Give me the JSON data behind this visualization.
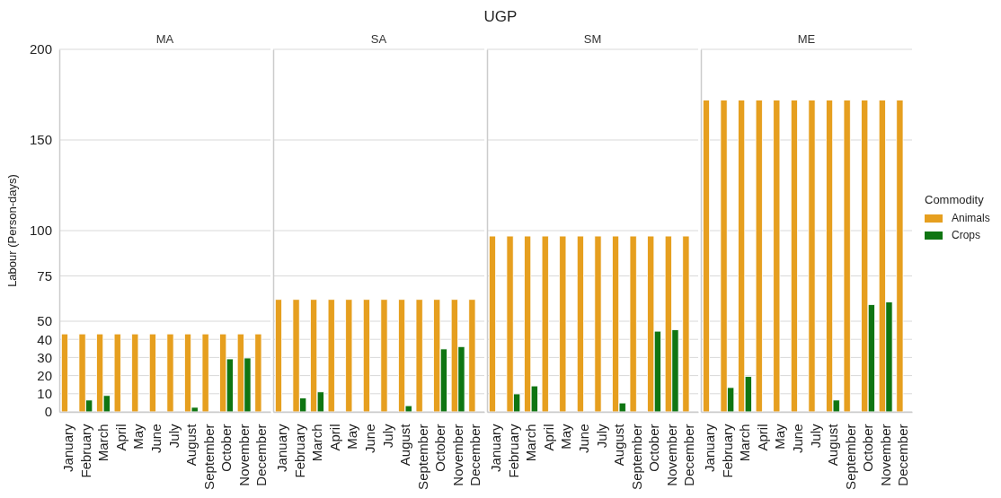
{
  "chart_data": [
    {
      "type": "bar",
      "title": "MA",
      "ylabel": "Labour (Person-days)",
      "annotations": [
        "UGP"
      ],
      "categories": [
        "January",
        "February",
        "March",
        "April",
        "May",
        "June",
        "July",
        "August",
        "September",
        "October",
        "November",
        "December"
      ],
      "series": [
        {
          "color": "#e69f1f",
          "values": [
            43,
            43,
            43,
            43,
            43,
            43,
            43,
            43,
            43,
            43,
            43,
            43
          ]
        },
        {
          "color": "#0f7512",
          "values": [
            null,
            6.5,
            9,
            null,
            null,
            null,
            null,
            2.5,
            null,
            29.2,
            29.7,
            null
          ]
        }
      ],
      "ylim": [
        0,
        200
      ],
      "yticks": [
        0,
        10,
        20,
        30,
        40,
        50,
        75,
        100,
        150,
        200
      ],
      "grid": "y"
    },
    {
      "type": "bar",
      "title": "SA",
      "categories": [
        "January",
        "February",
        "March",
        "April",
        "May",
        "June",
        "July",
        "August",
        "September",
        "October",
        "November",
        "December"
      ],
      "series": [
        {
          "color": "#e69f1f",
          "values": [
            62,
            62,
            62,
            62,
            62,
            62,
            62,
            62,
            62,
            62,
            62,
            62
          ]
        },
        {
          "color": "#0f7512",
          "values": [
            null,
            7.7,
            11,
            null,
            null,
            null,
            null,
            3.4,
            null,
            34.7,
            36,
            null
          ]
        }
      ],
      "ylim": [
        0,
        200
      ],
      "yticks": [
        0,
        10,
        20,
        30,
        40,
        50,
        75,
        100,
        150,
        200
      ],
      "grid": "y",
      "tick_labels": "x"
    },
    {
      "type": "bar",
      "title": "SM",
      "categories": [
        "January",
        "February",
        "March",
        "April",
        "May",
        "June",
        "July",
        "August",
        "September",
        "October",
        "November",
        "December"
      ],
      "series": [
        {
          "color": "#e69f1f",
          "values": [
            97,
            97,
            97,
            97,
            97,
            97,
            97,
            97,
            97,
            97,
            97,
            97
          ]
        },
        {
          "color": "#0f7512",
          "values": [
            null,
            9.9,
            14.3,
            null,
            null,
            null,
            null,
            4.9,
            null,
            44.5,
            45.3,
            null
          ]
        }
      ],
      "ylim": [
        0,
        200
      ],
      "yticks": [
        0,
        10,
        20,
        30,
        40,
        50,
        75,
        100,
        150,
        200
      ],
      "grid": "y",
      "tick_labels": "x"
    },
    {
      "type": "bar",
      "title": "ME",
      "legend_title": "Commodity",
      "legend": "right",
      "categories": [
        "January",
        "February",
        "March",
        "April",
        "May",
        "June",
        "July",
        "August",
        "September",
        "October",
        "November",
        "December"
      ],
      "series": [
        {
          "name": "Animals",
          "color": "#e69f1f",
          "values": [
            172,
            172,
            172,
            172,
            172,
            172,
            172,
            172,
            172,
            172,
            172,
            172
          ]
        },
        {
          "name": "Crops",
          "color": "#0f7512",
          "values": [
            null,
            13.4,
            19.5,
            null,
            null,
            null,
            null,
            6.5,
            null,
            59.2,
            60.6,
            null
          ]
        }
      ],
      "ylim": [
        0,
        200
      ],
      "yticks": [
        0,
        10,
        20,
        30,
        40,
        50,
        75,
        100,
        150,
        200
      ],
      "grid": "y",
      "tick_labels": "x"
    }
  ]
}
